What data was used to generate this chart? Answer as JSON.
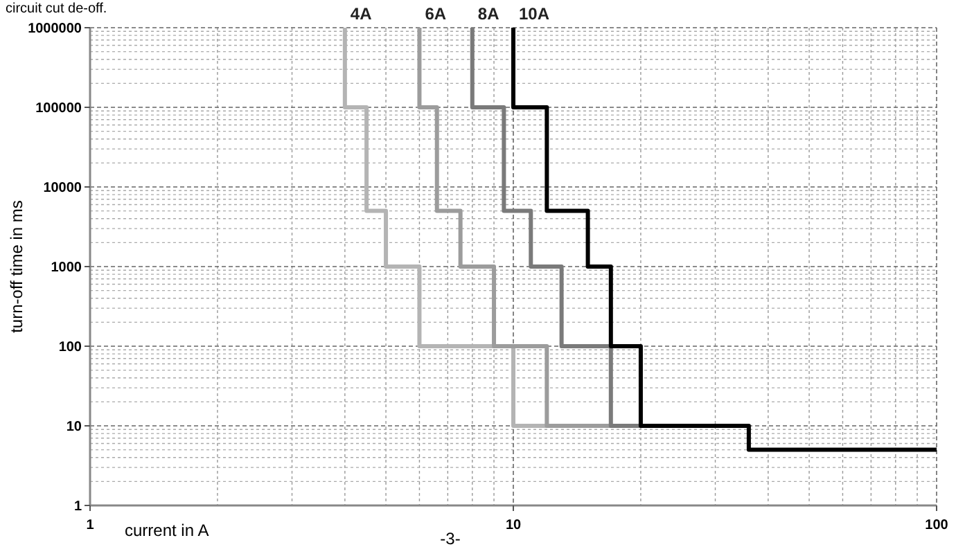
{
  "chart_data": {
    "type": "line",
    "xlabel": "current in A",
    "ylabel": "turn-off time in ms",
    "log": "xy",
    "grid": true,
    "marker": "none",
    "line_style": "solid",
    "xlim": [
      1,
      100
    ],
    "xticks": [
      1,
      10,
      100
    ],
    "ylim": [
      1,
      1000000
    ],
    "yticks": [
      1,
      10,
      100,
      1000,
      10000,
      100000,
      1000000
    ],
    "annotations": [
      "circuit cut de-off.",
      "-3-"
    ],
    "series": [
      {
        "name": "4A",
        "color": "#b4b4b4",
        "x": [
          4,
          4,
          4.5,
          4.5,
          5,
          5,
          6,
          6,
          10,
          10,
          12
        ],
        "values": [
          1000000,
          100000,
          100000,
          5000,
          5000,
          1000,
          1000,
          100,
          100,
          10,
          10
        ]
      },
      {
        "name": "6A",
        "color": "#9c9c9c",
        "x": [
          6,
          6,
          6.6,
          6.6,
          7.5,
          7.5,
          9,
          9,
          12,
          12,
          17
        ],
        "values": [
          1000000,
          100000,
          100000,
          5000,
          5000,
          1000,
          1000,
          100,
          100,
          10,
          10
        ]
      },
      {
        "name": "8A",
        "color": "#7a7a7a",
        "x": [
          8,
          8,
          9.5,
          9.5,
          11,
          11,
          13,
          13,
          17,
          17,
          20
        ],
        "values": [
          1000000,
          100000,
          100000,
          5000,
          5000,
          1000,
          1000,
          100,
          100,
          10,
          10
        ]
      },
      {
        "name": "10A",
        "color": "#000000",
        "x": [
          10,
          10,
          12,
          12,
          15,
          15,
          17,
          17,
          20,
          20,
          36,
          36,
          100
        ],
        "values": [
          1000000,
          100000,
          100000,
          5000,
          5000,
          1000,
          1000,
          100,
          100,
          10,
          10,
          5,
          5
        ]
      }
    ]
  }
}
